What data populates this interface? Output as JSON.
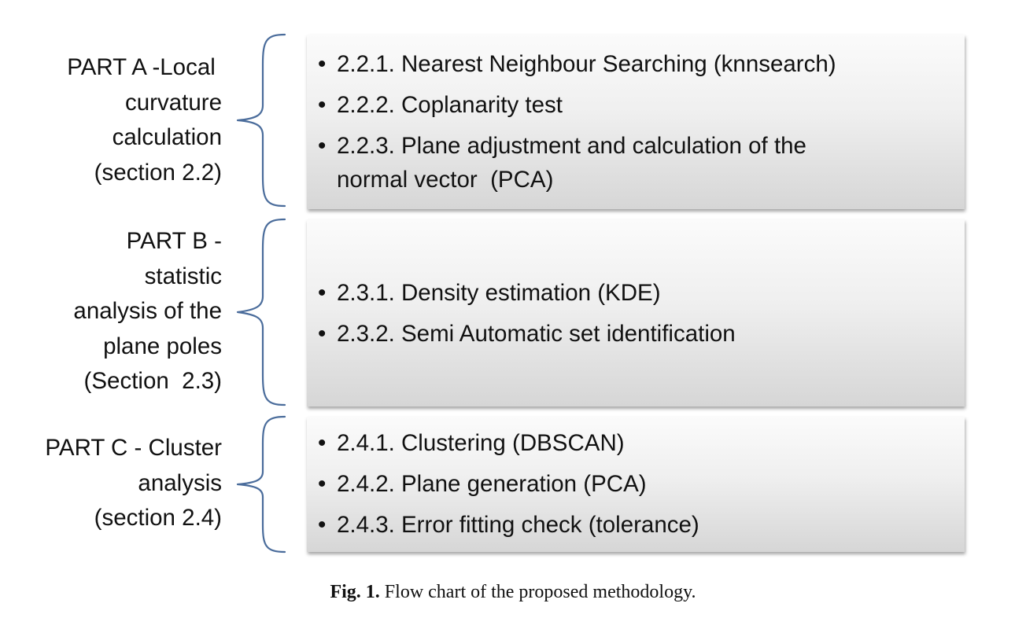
{
  "parts": [
    {
      "label_lines": [
        "PART A -Local ",
        "curvature",
        "calculation",
        "(section 2.2)"
      ],
      "items": [
        [
          "2.2.1. Nearest Neighbour Searching (knnsearch)"
        ],
        [
          "2.2.2. Coplanarity test"
        ],
        [
          "2.2.3. Plane adjustment and calculation of the",
          "normal vector  (PCA)"
        ]
      ]
    },
    {
      "label_lines": [
        "PART B -",
        "statistic",
        "analysis of the",
        "plane poles",
        "(Section  2.3)"
      ],
      "items": [
        [
          "2.3.1. Density estimation (KDE)"
        ],
        [
          "2.3.2. Semi Automatic set identification"
        ]
      ]
    },
    {
      "label_lines": [
        "PART C - Cluster",
        "analysis",
        "(section 2.4)"
      ],
      "items": [
        [
          "2.4.1. Clustering (DBSCAN)"
        ],
        [
          "2.4.2. Plane generation (PCA)"
        ],
        [
          "2.4.3. Error fitting check (tolerance)"
        ]
      ]
    }
  ],
  "bullet_char": "•",
  "caption": {
    "label": "Fig. 1.",
    "text": "Flow chart of the proposed methodology."
  },
  "colors": {
    "brace": "#4a6c9b"
  }
}
